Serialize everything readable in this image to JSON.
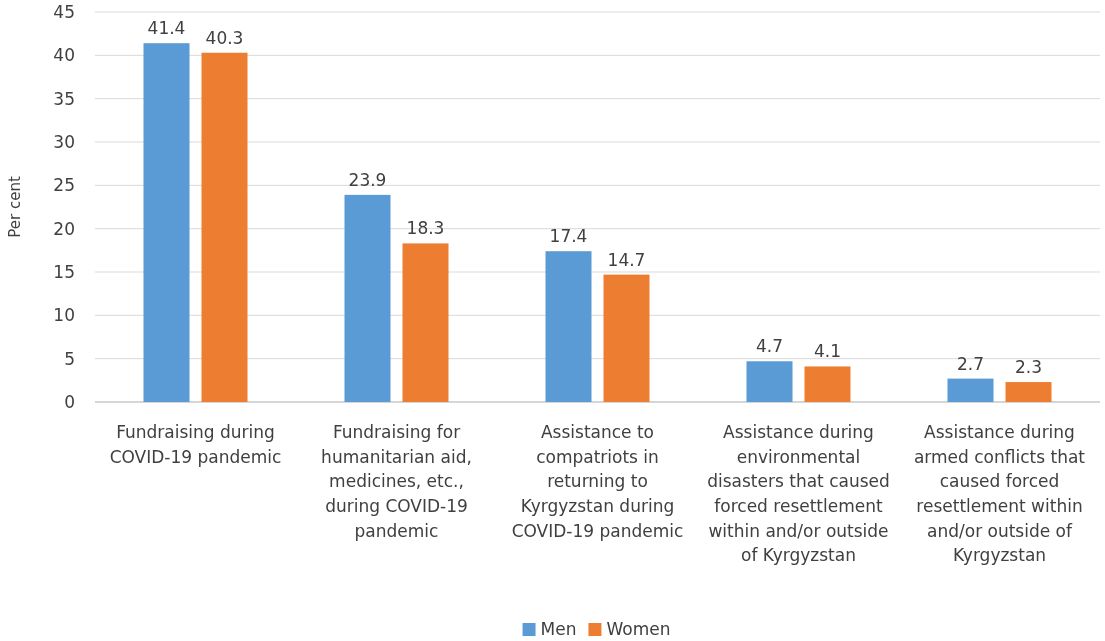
{
  "chart_data": {
    "type": "bar",
    "ylabel": "Per cent",
    "categories": [
      "Fundraising during COVID-19 pandemic",
      "Fundraising for humanitarian aid, medicines, etc., during COVID-19 pandemic",
      "Assistance to compatriots in returning to Kyrgyzstan during COVID-19 pandemic",
      "Assistance during environmental disasters that caused forced resettlement within and/or outside of Kyrgyzstan",
      "Assistance during armed conflicts that caused forced resettlement within and/or outside of Kyrgyzstan"
    ],
    "series": [
      {
        "name": "Men",
        "color": "#5b9bd5",
        "values": [
          41.4,
          23.9,
          17.4,
          4.7,
          2.7
        ]
      },
      {
        "name": "Women",
        "color": "#ed7d31",
        "values": [
          40.3,
          18.3,
          14.7,
          4.1,
          2.3
        ]
      }
    ],
    "ylim": [
      0,
      45
    ],
    "yticks": [
      0,
      5,
      10,
      15,
      20,
      25,
      30,
      35,
      40,
      45
    ],
    "grid": "y",
    "data_labels": true,
    "legend": "bottom"
  }
}
